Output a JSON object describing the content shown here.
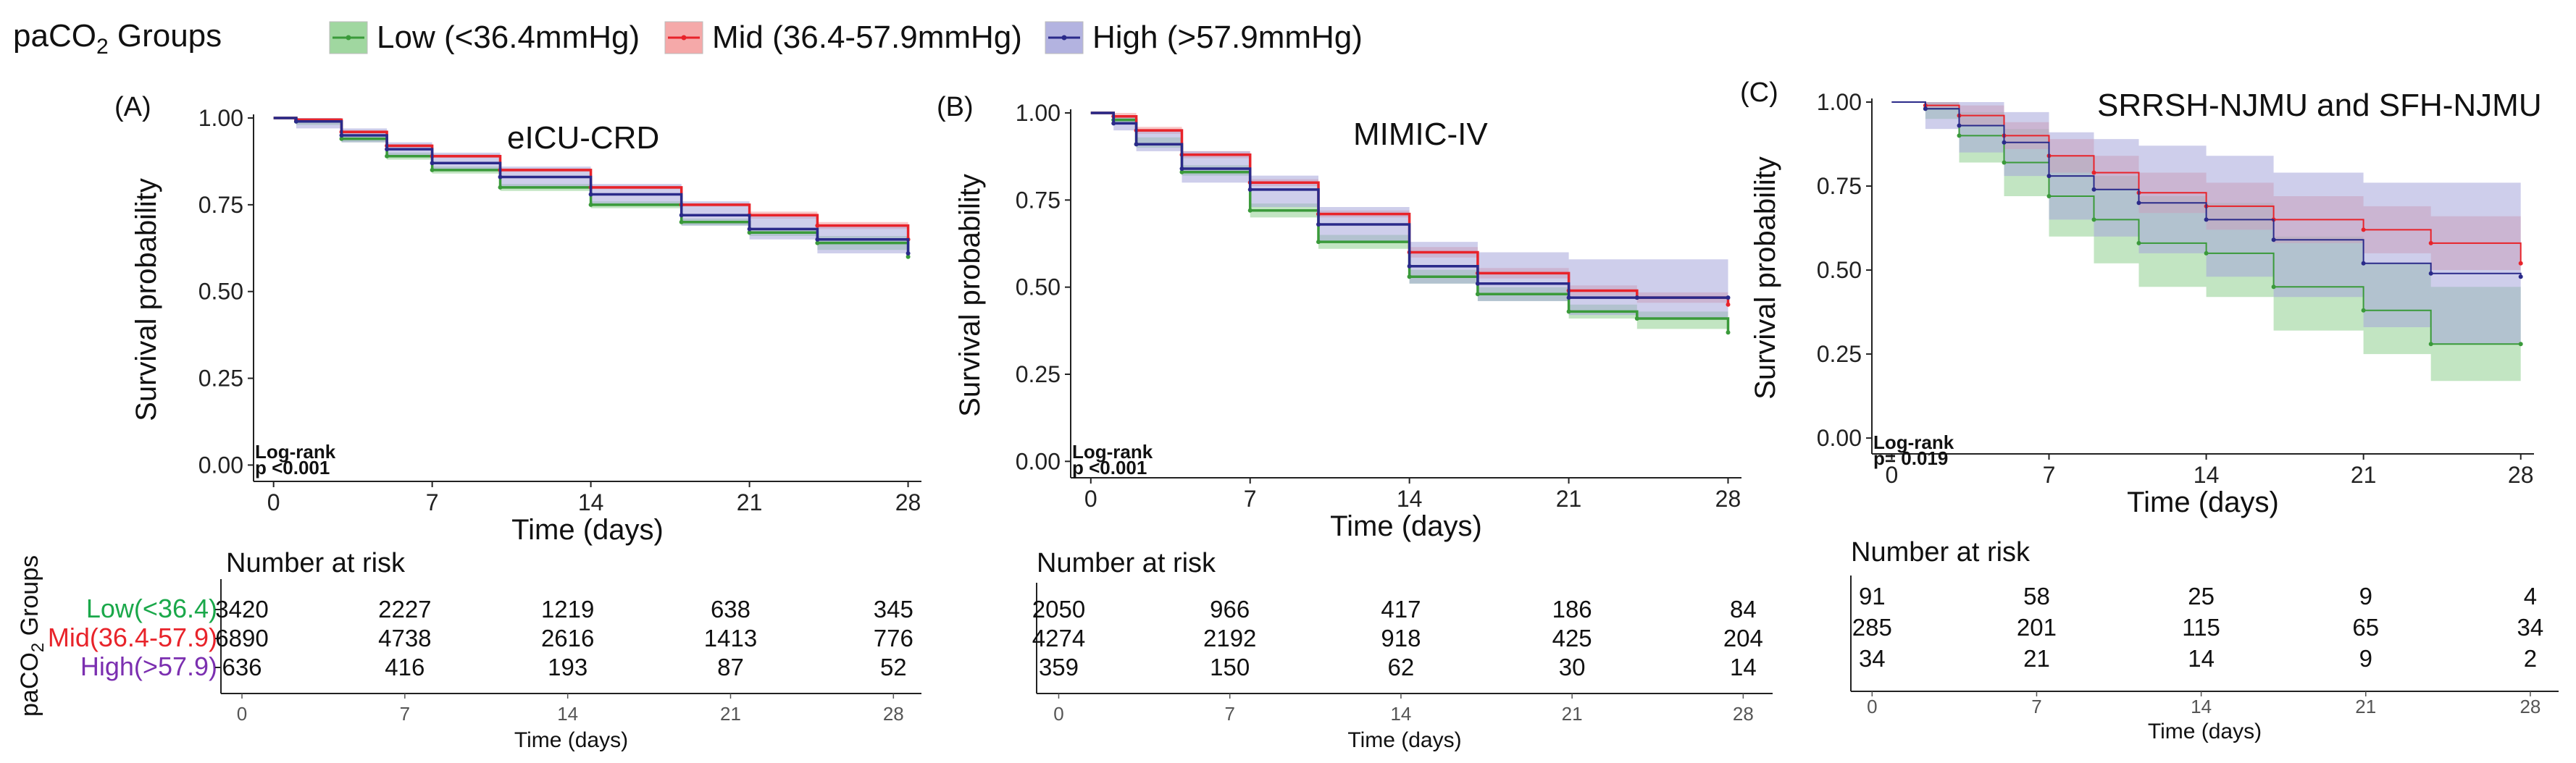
{
  "legend": {
    "title_prefix": "paCO",
    "title_sub": "2",
    "title_suffix": " Groups",
    "items": [
      {
        "label": "Low (<36.4mmHg)",
        "color": "#3a9a3a",
        "fill": "#8fd08f"
      },
      {
        "label": "Mid (36.4-57.9mmHg)",
        "color": "#e8232a",
        "fill": "#f39a9a"
      },
      {
        "label": "High (>57.9mmHg)",
        "color": "#2a2a8a",
        "fill": "#a6a6da"
      }
    ]
  },
  "strata": {
    "title_prefix": "paCO",
    "title_sub": "2",
    "title_suffix": " Groups",
    "labels": [
      {
        "text": "Low(<36.4)",
        "color": "#1aa84a"
      },
      {
        "text": "Mid(36.4-57.9)",
        "color": "#e8232a"
      },
      {
        "text": "High(>57.9)",
        "color": "#7b2fb0"
      }
    ]
  },
  "chart_data": [
    {
      "type": "line",
      "panel": "(A)",
      "title": "eICU-CRD",
      "xlabel": "Time (days)",
      "ylabel": "Survival probability",
      "xlim": [
        0,
        28
      ],
      "ylim": [
        0,
        1
      ],
      "xticks": [
        "0",
        "7",
        "14",
        "21",
        "28"
      ],
      "yticks": [
        "0.00",
        "0.25",
        "0.50",
        "0.75",
        "1.00"
      ],
      "logrank": [
        "Log-rank",
        "p <0.001"
      ],
      "series": [
        {
          "name": "Low (<36.4mmHg)",
          "x": [
            0,
            1,
            3,
            5,
            7,
            10,
            14,
            18,
            21,
            24,
            28
          ],
          "y": [
            1.0,
            0.99,
            0.94,
            0.89,
            0.85,
            0.8,
            0.75,
            0.7,
            0.67,
            0.64,
            0.6
          ],
          "lower": [
            1.0,
            0.98,
            0.93,
            0.88,
            0.84,
            0.79,
            0.74,
            0.69,
            0.66,
            0.62,
            0.57
          ],
          "upper": [
            1.0,
            0.995,
            0.95,
            0.9,
            0.86,
            0.81,
            0.76,
            0.71,
            0.68,
            0.66,
            0.63
          ]
        },
        {
          "name": "Mid (36.4-57.9mmHg)",
          "x": [
            0,
            1,
            3,
            5,
            7,
            10,
            14,
            18,
            21,
            24,
            28
          ],
          "y": [
            1.0,
            0.995,
            0.96,
            0.92,
            0.89,
            0.85,
            0.8,
            0.75,
            0.72,
            0.69,
            0.65
          ],
          "lower": [
            1.0,
            0.99,
            0.955,
            0.915,
            0.885,
            0.845,
            0.795,
            0.745,
            0.71,
            0.68,
            0.63
          ],
          "upper": [
            1.0,
            1.0,
            0.965,
            0.925,
            0.895,
            0.855,
            0.805,
            0.755,
            0.73,
            0.7,
            0.67
          ]
        },
        {
          "name": "High (>57.9mmHg)",
          "x": [
            0,
            1,
            3,
            5,
            7,
            10,
            14,
            18,
            21,
            24,
            28
          ],
          "y": [
            1.0,
            0.99,
            0.95,
            0.91,
            0.87,
            0.83,
            0.78,
            0.72,
            0.68,
            0.65,
            0.61
          ],
          "lower": [
            1.0,
            0.97,
            0.93,
            0.89,
            0.85,
            0.8,
            0.75,
            0.69,
            0.65,
            0.61,
            0.57
          ],
          "upper": [
            1.0,
            1.0,
            0.97,
            0.93,
            0.9,
            0.86,
            0.81,
            0.76,
            0.72,
            0.69,
            0.65
          ]
        }
      ],
      "risk_table": {
        "title": "Number at risk",
        "rows": [
          [
            "3420",
            "2227",
            "1219",
            "638",
            "345"
          ],
          [
            "6890",
            "4738",
            "2616",
            "1413",
            "776"
          ],
          [
            "636",
            "416",
            "193",
            "87",
            "52"
          ]
        ],
        "xticks": [
          "0",
          "7",
          "14",
          "21",
          "28"
        ],
        "xlabel": "Time (days)"
      }
    },
    {
      "type": "line",
      "panel": "(B)",
      "title": "MIMIC-IV",
      "xlabel": "Time (days)",
      "ylabel": "Survival probability",
      "xlim": [
        0,
        28
      ],
      "ylim": [
        0,
        1
      ],
      "xticks": [
        "0",
        "7",
        "14",
        "21",
        "28"
      ],
      "yticks": [
        "0.00",
        "0.25",
        "0.50",
        "0.75",
        "1.00"
      ],
      "logrank": [
        "Log-rank",
        "p <0.001"
      ],
      "series": [
        {
          "name": "Low (<36.4mmHg)",
          "x": [
            0,
            1,
            2,
            4,
            7,
            10,
            14,
            17,
            21,
            24,
            28
          ],
          "y": [
            1.0,
            0.98,
            0.91,
            0.83,
            0.72,
            0.63,
            0.53,
            0.48,
            0.43,
            0.41,
            0.37
          ],
          "lower": [
            1.0,
            0.97,
            0.9,
            0.82,
            0.7,
            0.61,
            0.51,
            0.46,
            0.41,
            0.38,
            0.34
          ],
          "upper": [
            1.0,
            0.99,
            0.93,
            0.85,
            0.74,
            0.65,
            0.55,
            0.5,
            0.45,
            0.43,
            0.4
          ]
        },
        {
          "name": "Mid (36.4-57.9mmHg)",
          "x": [
            0,
            1,
            2,
            4,
            7,
            10,
            14,
            17,
            21,
            24,
            28
          ],
          "y": [
            1.0,
            0.99,
            0.95,
            0.88,
            0.8,
            0.71,
            0.6,
            0.54,
            0.49,
            0.47,
            0.45
          ],
          "lower": [
            1.0,
            0.985,
            0.94,
            0.87,
            0.79,
            0.7,
            0.585,
            0.525,
            0.475,
            0.455,
            0.43
          ],
          "upper": [
            1.0,
            1.0,
            0.96,
            0.89,
            0.81,
            0.72,
            0.615,
            0.555,
            0.505,
            0.485,
            0.47
          ]
        },
        {
          "name": "High (>57.9mmHg)",
          "x": [
            0,
            1,
            2,
            4,
            7,
            10,
            14,
            17,
            21,
            24,
            28
          ],
          "y": [
            1.0,
            0.97,
            0.91,
            0.84,
            0.78,
            0.68,
            0.56,
            0.51,
            0.47,
            0.47,
            0.47
          ],
          "lower": [
            1.0,
            0.95,
            0.89,
            0.8,
            0.73,
            0.63,
            0.51,
            0.46,
            0.42,
            0.41,
            0.4
          ],
          "upper": [
            1.0,
            0.99,
            0.95,
            0.89,
            0.82,
            0.73,
            0.63,
            0.6,
            0.58,
            0.58,
            0.58
          ]
        }
      ],
      "risk_table": {
        "title": "Number at risk",
        "rows": [
          [
            "2050",
            "966",
            "417",
            "186",
            "84"
          ],
          [
            "4274",
            "2192",
            "918",
            "425",
            "204"
          ],
          [
            "359",
            "150",
            "62",
            "30",
            "14"
          ]
        ],
        "xticks": [
          "0",
          "7",
          "14",
          "21",
          "28"
        ],
        "xlabel": "Time (days)"
      }
    },
    {
      "type": "line",
      "panel": "(C)",
      "title": "SRRSH-NJMU and SFH-NJMU",
      "xlabel": "Time (days)",
      "ylabel": "Survival probability",
      "xlim": [
        0,
        28
      ],
      "ylim": [
        0,
        1
      ],
      "xticks": [
        "0",
        "7",
        "14",
        "21",
        "28"
      ],
      "yticks": [
        "0.00",
        "0.25",
        "0.50",
        "0.75",
        "1.00"
      ],
      "logrank": [
        "Log-rank",
        "p= 0.019"
      ],
      "series": [
        {
          "name": "Low (<36.4mmHg)",
          "x": [
            0,
            1.5,
            3,
            5,
            7,
            9,
            11,
            14,
            17,
            21,
            24,
            28
          ],
          "y": [
            1.0,
            0.98,
            0.9,
            0.82,
            0.72,
            0.65,
            0.58,
            0.55,
            0.45,
            0.38,
            0.28,
            0.28
          ],
          "lower": [
            1.0,
            0.95,
            0.82,
            0.72,
            0.6,
            0.52,
            0.45,
            0.42,
            0.32,
            0.25,
            0.17,
            0.17
          ],
          "upper": [
            1.0,
            1.0,
            0.97,
            0.92,
            0.84,
            0.78,
            0.72,
            0.7,
            0.6,
            0.52,
            0.45,
            0.45
          ]
        },
        {
          "name": "Mid (36.4-57.9mmHg)",
          "x": [
            0,
            1.5,
            3,
            5,
            7,
            9,
            11,
            14,
            17,
            21,
            24,
            28
          ],
          "y": [
            1.0,
            0.99,
            0.96,
            0.9,
            0.84,
            0.79,
            0.73,
            0.69,
            0.65,
            0.62,
            0.58,
            0.52
          ],
          "lower": [
            1.0,
            0.98,
            0.93,
            0.86,
            0.79,
            0.74,
            0.67,
            0.62,
            0.58,
            0.55,
            0.5,
            0.44
          ],
          "upper": [
            1.0,
            1.0,
            0.99,
            0.94,
            0.89,
            0.84,
            0.79,
            0.76,
            0.72,
            0.69,
            0.66,
            0.6
          ]
        },
        {
          "name": "High (>57.9mmHg)",
          "x": [
            0,
            1.5,
            3,
            5,
            7,
            9,
            11,
            14,
            17,
            21,
            24,
            28
          ],
          "y": [
            1.0,
            0.98,
            0.93,
            0.88,
            0.78,
            0.74,
            0.7,
            0.65,
            0.59,
            0.52,
            0.49,
            0.48
          ],
          "lower": [
            1.0,
            0.92,
            0.85,
            0.78,
            0.65,
            0.6,
            0.55,
            0.48,
            0.42,
            0.33,
            0.28,
            0.15
          ],
          "upper": [
            1.0,
            1.0,
            1.0,
            0.97,
            0.91,
            0.89,
            0.87,
            0.84,
            0.79,
            0.76,
            0.76,
            0.8
          ]
        }
      ],
      "risk_table": {
        "title": "Number at risk",
        "rows": [
          [
            "91",
            "58",
            "25",
            "9",
            "4"
          ],
          [
            "285",
            "201",
            "115",
            "65",
            "34"
          ],
          [
            "34",
            "21",
            "14",
            "9",
            "2"
          ]
        ],
        "xticks": [
          "0",
          "7",
          "14",
          "21",
          "28"
        ],
        "xlabel": "Time (days)"
      }
    }
  ]
}
